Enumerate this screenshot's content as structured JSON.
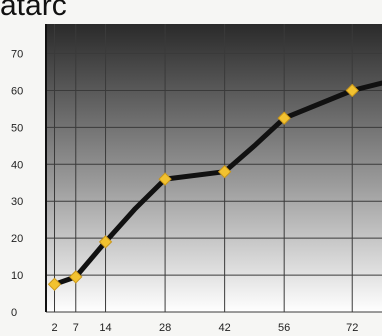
{
  "header": {
    "title_fragment": "atarc"
  },
  "chart_data": {
    "type": "line",
    "x": [
      2,
      7,
      14,
      21,
      28,
      42,
      49,
      56,
      72,
      79
    ],
    "y": [
      7.5,
      9.5,
      19,
      28,
      36,
      38,
      45,
      52.5,
      60,
      62
    ],
    "marked_points": [
      {
        "x": 2,
        "y": 7.5
      },
      {
        "x": 7,
        "y": 9.5
      },
      {
        "x": 14,
        "y": 19
      },
      {
        "x": 28,
        "y": 36
      },
      {
        "x": 42,
        "y": 38
      },
      {
        "x": 56,
        "y": 52.5
      },
      {
        "x": 72,
        "y": 60
      }
    ],
    "x_ticks": [
      2,
      7,
      14,
      28,
      42,
      56,
      72
    ],
    "x_grid": [
      2,
      7,
      14,
      28,
      42,
      56,
      72
    ],
    "y_ticks": [
      0,
      10,
      20,
      30,
      40,
      50,
      60,
      70
    ],
    "xlim": [
      0,
      79
    ],
    "ylim": [
      0,
      78
    ],
    "grid": true,
    "title": "",
    "xlabel": "",
    "ylabel": "",
    "colors": {
      "line": "#111111",
      "marker": "#f2c230",
      "grid": "#3a3a3a",
      "gradient_top": "#2a2a2a",
      "gradient_bottom": "#ffffff"
    }
  }
}
